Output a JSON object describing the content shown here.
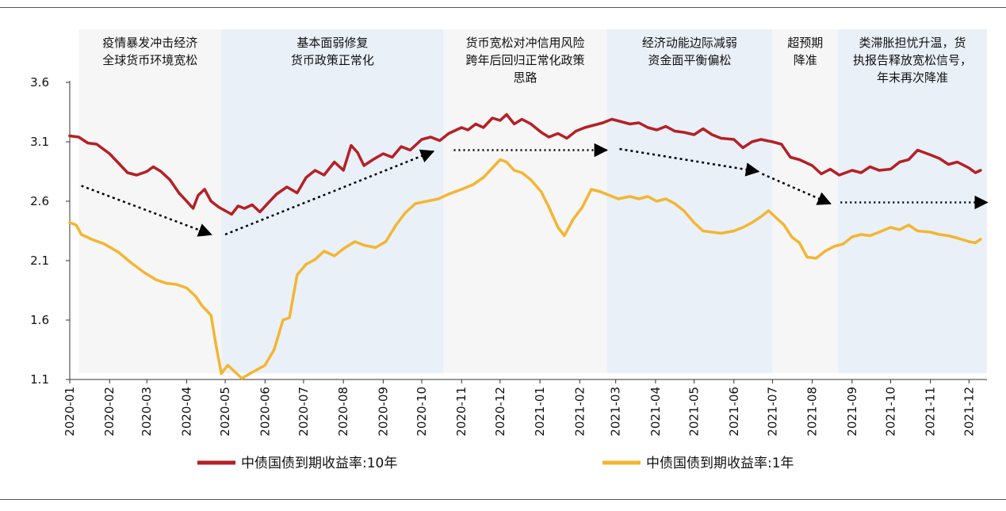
{
  "chart_data": {
    "type": "line",
    "title": "",
    "xlabel": "",
    "ylabel": "",
    "ylim": [
      1.1,
      3.6
    ],
    "yticks": [
      "3.6",
      "3.1",
      "2.6",
      "2.1",
      "1.6",
      "1.1"
    ],
    "x_tick_labels": [
      "2020-01",
      "2020-02",
      "2020-03",
      "2020-04",
      "2020-05",
      "2020-06",
      "2020-07",
      "2020-08",
      "2020-09",
      "2020-10",
      "2020-11",
      "2020-12",
      "2021-01",
      "2021-02",
      "2021-03",
      "2021-04",
      "2021-05",
      "2021-06",
      "2021-07",
      "2021-08",
      "2021-09",
      "2021-10",
      "2021-11",
      "2021-12"
    ],
    "grid": false,
    "legend_position": "bottom",
    "colors": {
      "ten_year": "#b52025",
      "one_year": "#f2b632",
      "phase_odd": "#f6f6f7",
      "phase_even": "#eaf0f7",
      "arrow": "#000000"
    },
    "phases": [
      {
        "lines": [
          "疫情暴发冲击经济",
          "全球货币环境宽松"
        ],
        "start": "2020-01-08",
        "end": "2020-04-28"
      },
      {
        "lines": [
          "基本面弱修复",
          "货币政策正常化"
        ],
        "start": "2020-04-28",
        "end": "2020-10-18"
      },
      {
        "lines": [
          "货币宽松对冲信用风险",
          "跨年后回归正常化政策",
          "思路"
        ],
        "start": "2020-10-18",
        "end": "2021-02-22"
      },
      {
        "lines": [
          "经济动能边际减弱",
          "资金面平衡偏松"
        ],
        "start": "2021-02-22",
        "end": "2021-07-01"
      },
      {
        "lines": [
          "超预期",
          "降准"
        ],
        "start": "2021-07-01",
        "end": "2021-08-21"
      },
      {
        "lines": [
          "类滞胀担忧升温，货",
          "执报告释放宽松信号，",
          "年末再次降准"
        ],
        "start": "2021-08-21",
        "end": "2021-12-15"
      }
    ],
    "trend_arrows": [
      {
        "from": [
          "2020-01-10",
          2.73
        ],
        "to": [
          "2020-04-20",
          2.32
        ],
        "style": "dashed"
      },
      {
        "from": [
          "2020-05-01",
          2.32
        ],
        "to": [
          "2020-10-10",
          3.02
        ],
        "style": "dashed"
      },
      {
        "from": [
          "2020-10-26",
          3.03
        ],
        "to": [
          "2021-02-22",
          3.03
        ],
        "style": "dotted"
      },
      {
        "from": [
          "2021-03-04",
          3.04
        ],
        "to": [
          "2021-06-20",
          2.85
        ],
        "style": "dashed"
      },
      {
        "from": [
          "2021-06-23",
          2.83
        ],
        "to": [
          "2021-08-15",
          2.58
        ],
        "style": "dashed"
      },
      {
        "from": [
          "2021-08-23",
          2.59
        ],
        "to": [
          "2021-12-15",
          2.59
        ],
        "style": "dotted"
      }
    ],
    "series": [
      {
        "name": "中债国债到期收益率:10年",
        "points": [
          [
            "2020-01-01",
            3.15
          ],
          [
            "2020-01-08",
            3.14
          ],
          [
            "2020-01-15",
            3.09
          ],
          [
            "2020-01-22",
            3.08
          ],
          [
            "2020-02-01",
            3.0
          ],
          [
            "2020-02-08",
            2.92
          ],
          [
            "2020-02-15",
            2.84
          ],
          [
            "2020-02-22",
            2.82
          ],
          [
            "2020-03-01",
            2.85
          ],
          [
            "2020-03-06",
            2.89
          ],
          [
            "2020-03-12",
            2.85
          ],
          [
            "2020-03-19",
            2.78
          ],
          [
            "2020-03-26",
            2.67
          ],
          [
            "2020-04-01",
            2.6
          ],
          [
            "2020-04-06",
            2.54
          ],
          [
            "2020-04-10",
            2.65
          ],
          [
            "2020-04-15",
            2.7
          ],
          [
            "2020-04-20",
            2.6
          ],
          [
            "2020-04-26",
            2.55
          ],
          [
            "2020-05-01",
            2.52
          ],
          [
            "2020-05-06",
            2.49
          ],
          [
            "2020-05-11",
            2.56
          ],
          [
            "2020-05-16",
            2.54
          ],
          [
            "2020-05-22",
            2.57
          ],
          [
            "2020-05-28",
            2.51
          ],
          [
            "2020-06-03",
            2.58
          ],
          [
            "2020-06-10",
            2.66
          ],
          [
            "2020-06-18",
            2.72
          ],
          [
            "2020-06-26",
            2.67
          ],
          [
            "2020-07-03",
            2.8
          ],
          [
            "2020-07-10",
            2.86
          ],
          [
            "2020-07-17",
            2.82
          ],
          [
            "2020-07-25",
            2.93
          ],
          [
            "2020-08-01",
            2.86
          ],
          [
            "2020-08-07",
            3.07
          ],
          [
            "2020-08-12",
            3.01
          ],
          [
            "2020-08-17",
            2.9
          ],
          [
            "2020-08-24",
            2.95
          ],
          [
            "2020-09-01",
            3.0
          ],
          [
            "2020-09-08",
            2.97
          ],
          [
            "2020-09-15",
            3.06
          ],
          [
            "2020-09-22",
            3.03
          ],
          [
            "2020-10-01",
            3.12
          ],
          [
            "2020-10-08",
            3.14
          ],
          [
            "2020-10-15",
            3.11
          ],
          [
            "2020-10-22",
            3.17
          ],
          [
            "2020-11-01",
            3.22
          ],
          [
            "2020-11-06",
            3.2
          ],
          [
            "2020-11-12",
            3.25
          ],
          [
            "2020-11-18",
            3.22
          ],
          [
            "2020-11-25",
            3.3
          ],
          [
            "2020-12-01",
            3.28
          ],
          [
            "2020-12-06",
            3.33
          ],
          [
            "2020-12-12",
            3.25
          ],
          [
            "2020-12-18",
            3.29
          ],
          [
            "2020-12-25",
            3.25
          ],
          [
            "2021-01-02",
            3.18
          ],
          [
            "2021-01-08",
            3.14
          ],
          [
            "2021-01-15",
            3.17
          ],
          [
            "2021-01-22",
            3.13
          ],
          [
            "2021-01-29",
            3.19
          ],
          [
            "2021-02-05",
            3.22
          ],
          [
            "2021-02-12",
            3.24
          ],
          [
            "2021-02-19",
            3.26
          ],
          [
            "2021-02-26",
            3.29
          ],
          [
            "2021-03-05",
            3.27
          ],
          [
            "2021-03-12",
            3.25
          ],
          [
            "2021-03-19",
            3.26
          ],
          [
            "2021-03-26",
            3.22
          ],
          [
            "2021-04-02",
            3.2
          ],
          [
            "2021-04-09",
            3.23
          ],
          [
            "2021-04-16",
            3.19
          ],
          [
            "2021-04-23",
            3.18
          ],
          [
            "2021-05-01",
            3.16
          ],
          [
            "2021-05-08",
            3.21
          ],
          [
            "2021-05-15",
            3.16
          ],
          [
            "2021-05-22",
            3.13
          ],
          [
            "2021-06-01",
            3.12
          ],
          [
            "2021-06-08",
            3.05
          ],
          [
            "2021-06-15",
            3.1
          ],
          [
            "2021-06-22",
            3.12
          ],
          [
            "2021-07-01",
            3.1
          ],
          [
            "2021-07-08",
            3.08
          ],
          [
            "2021-07-15",
            2.97
          ],
          [
            "2021-07-22",
            2.95
          ],
          [
            "2021-08-01",
            2.9
          ],
          [
            "2021-08-08",
            2.83
          ],
          [
            "2021-08-15",
            2.87
          ],
          [
            "2021-08-22",
            2.82
          ],
          [
            "2021-09-01",
            2.86
          ],
          [
            "2021-09-08",
            2.84
          ],
          [
            "2021-09-15",
            2.89
          ],
          [
            "2021-09-22",
            2.86
          ],
          [
            "2021-10-01",
            2.87
          ],
          [
            "2021-10-08",
            2.93
          ],
          [
            "2021-10-15",
            2.95
          ],
          [
            "2021-10-22",
            3.03
          ],
          [
            "2021-11-01",
            2.99
          ],
          [
            "2021-11-08",
            2.96
          ],
          [
            "2021-11-15",
            2.91
          ],
          [
            "2021-11-22",
            2.93
          ],
          [
            "2021-12-01",
            2.88
          ],
          [
            "2021-12-06",
            2.84
          ],
          [
            "2021-12-10",
            2.86
          ]
        ]
      },
      {
        "name": "中债国债到期收益率:1年",
        "points": [
          [
            "2020-01-01",
            2.42
          ],
          [
            "2020-01-06",
            2.4
          ],
          [
            "2020-01-10",
            2.32
          ],
          [
            "2020-01-18",
            2.28
          ],
          [
            "2020-01-28",
            2.24
          ],
          [
            "2020-02-08",
            2.17
          ],
          [
            "2020-02-18",
            2.08
          ],
          [
            "2020-02-28",
            2.0
          ],
          [
            "2020-03-08",
            1.94
          ],
          [
            "2020-03-16",
            1.91
          ],
          [
            "2020-03-24",
            1.9
          ],
          [
            "2020-04-01",
            1.87
          ],
          [
            "2020-04-08",
            1.8
          ],
          [
            "2020-04-13",
            1.72
          ],
          [
            "2020-04-20",
            1.64
          ],
          [
            "2020-04-24",
            1.38
          ],
          [
            "2020-04-28",
            1.15
          ],
          [
            "2020-05-03",
            1.22
          ],
          [
            "2020-05-09",
            1.16
          ],
          [
            "2020-05-14",
            1.11
          ],
          [
            "2020-05-22",
            1.16
          ],
          [
            "2020-06-01",
            1.22
          ],
          [
            "2020-06-08",
            1.35
          ],
          [
            "2020-06-15",
            1.6
          ],
          [
            "2020-06-20",
            1.62
          ],
          [
            "2020-06-26",
            1.98
          ],
          [
            "2020-07-03",
            2.07
          ],
          [
            "2020-07-10",
            2.11
          ],
          [
            "2020-07-17",
            2.18
          ],
          [
            "2020-07-25",
            2.14
          ],
          [
            "2020-08-01",
            2.2
          ],
          [
            "2020-08-10",
            2.26
          ],
          [
            "2020-08-17",
            2.23
          ],
          [
            "2020-08-26",
            2.21
          ],
          [
            "2020-09-03",
            2.26
          ],
          [
            "2020-09-11",
            2.4
          ],
          [
            "2020-09-18",
            2.5
          ],
          [
            "2020-09-26",
            2.58
          ],
          [
            "2020-10-05",
            2.6
          ],
          [
            "2020-10-14",
            2.62
          ],
          [
            "2020-10-22",
            2.66
          ],
          [
            "2020-11-01",
            2.7
          ],
          [
            "2020-11-10",
            2.74
          ],
          [
            "2020-11-18",
            2.8
          ],
          [
            "2020-11-25",
            2.88
          ],
          [
            "2020-12-01",
            2.95
          ],
          [
            "2020-12-06",
            2.93
          ],
          [
            "2020-12-12",
            2.86
          ],
          [
            "2020-12-18",
            2.84
          ],
          [
            "2020-12-25",
            2.78
          ],
          [
            "2021-01-02",
            2.68
          ],
          [
            "2021-01-08",
            2.55
          ],
          [
            "2021-01-15",
            2.38
          ],
          [
            "2021-01-20",
            2.31
          ],
          [
            "2021-01-27",
            2.45
          ],
          [
            "2021-02-03",
            2.55
          ],
          [
            "2021-02-10",
            2.7
          ],
          [
            "2021-02-17",
            2.68
          ],
          [
            "2021-02-24",
            2.65
          ],
          [
            "2021-03-03",
            2.62
          ],
          [
            "2021-03-12",
            2.64
          ],
          [
            "2021-03-19",
            2.62
          ],
          [
            "2021-03-26",
            2.64
          ],
          [
            "2021-04-02",
            2.6
          ],
          [
            "2021-04-09",
            2.62
          ],
          [
            "2021-04-16",
            2.58
          ],
          [
            "2021-04-23",
            2.52
          ],
          [
            "2021-05-01",
            2.42
          ],
          [
            "2021-05-08",
            2.35
          ],
          [
            "2021-05-15",
            2.34
          ],
          [
            "2021-05-22",
            2.33
          ],
          [
            "2021-06-01",
            2.35
          ],
          [
            "2021-06-08",
            2.38
          ],
          [
            "2021-06-15",
            2.42
          ],
          [
            "2021-06-22",
            2.47
          ],
          [
            "2021-06-28",
            2.52
          ],
          [
            "2021-07-04",
            2.46
          ],
          [
            "2021-07-10",
            2.4
          ],
          [
            "2021-07-16",
            2.3
          ],
          [
            "2021-07-22",
            2.25
          ],
          [
            "2021-07-28",
            2.13
          ],
          [
            "2021-08-04",
            2.12
          ],
          [
            "2021-08-11",
            2.18
          ],
          [
            "2021-08-18",
            2.22
          ],
          [
            "2021-08-25",
            2.24
          ],
          [
            "2021-09-01",
            2.3
          ],
          [
            "2021-09-08",
            2.32
          ],
          [
            "2021-09-15",
            2.31
          ],
          [
            "2021-09-22",
            2.34
          ],
          [
            "2021-10-01",
            2.38
          ],
          [
            "2021-10-08",
            2.36
          ],
          [
            "2021-10-15",
            2.4
          ],
          [
            "2021-10-22",
            2.35
          ],
          [
            "2021-11-01",
            2.34
          ],
          [
            "2021-11-08",
            2.32
          ],
          [
            "2021-11-15",
            2.31
          ],
          [
            "2021-11-22",
            2.29
          ],
          [
            "2021-12-01",
            2.26
          ],
          [
            "2021-12-06",
            2.25
          ],
          [
            "2021-12-10",
            2.28
          ]
        ]
      }
    ]
  }
}
